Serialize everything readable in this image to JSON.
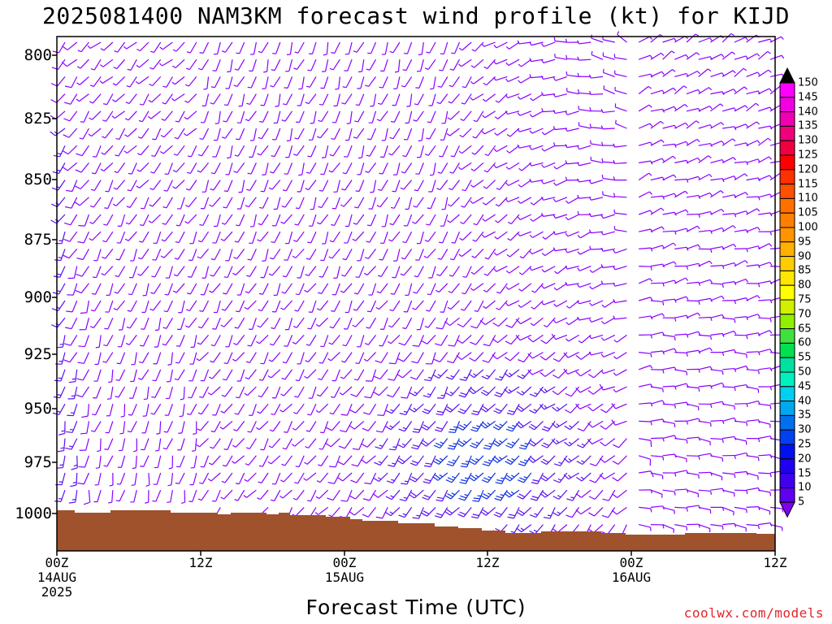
{
  "title": "2025081400 NAM3KM forecast wind profile (kt) for KIJD",
  "y_axis": {
    "ticks": [
      "800",
      "825",
      "850",
      "875",
      "900",
      "925",
      "950",
      "975",
      "1000"
    ]
  },
  "x_axis": {
    "title": "Forecast Time (UTC)",
    "ticks": [
      {
        "line1": "00Z",
        "line2": "14AUG",
        "line3": "2025"
      },
      {
        "line1": "12Z",
        "line2": "",
        "line3": ""
      },
      {
        "line1": "00Z",
        "line2": "15AUG",
        "line3": ""
      },
      {
        "line1": "12Z",
        "line2": "",
        "line3": ""
      },
      {
        "line1": "00Z",
        "line2": "16AUG",
        "line3": ""
      },
      {
        "line1": "12Z",
        "line2": "",
        "line3": ""
      }
    ]
  },
  "colorbar": {
    "labels": [
      "150",
      "145",
      "140",
      "135",
      "130",
      "125",
      "120",
      "115",
      "110",
      "105",
      "100",
      "95",
      "90",
      "85",
      "80",
      "75",
      "70",
      "65",
      "60",
      "55",
      "50",
      "45",
      "40",
      "35",
      "30",
      "25",
      "20",
      "15",
      "10",
      "5"
    ],
    "colors": [
      "#ff00ff",
      "#f000e0",
      "#f000b4",
      "#f0007a",
      "#f00040",
      "#ff0000",
      "#ff3000",
      "#ff5000",
      "#ff7000",
      "#ff8000",
      "#ff9400",
      "#ffb000",
      "#ffcc00",
      "#ffe600",
      "#ffff00",
      "#d0f000",
      "#90f000",
      "#40e040",
      "#00e050",
      "#00e0a0",
      "#00f0c0",
      "#00d0f0",
      "#00a8f0",
      "#0070f0",
      "#0040f0",
      "#0010f0",
      "#2000f0",
      "#4000f0",
      "#6000f0",
      "#8000f0"
    ]
  },
  "wind_colors": {
    "light": "#8a00ff",
    "medium": "#5a10f0",
    "strong": "#1030e0"
  },
  "terrain_color": "#a0522d",
  "credit": "coolwx.com/models"
}
